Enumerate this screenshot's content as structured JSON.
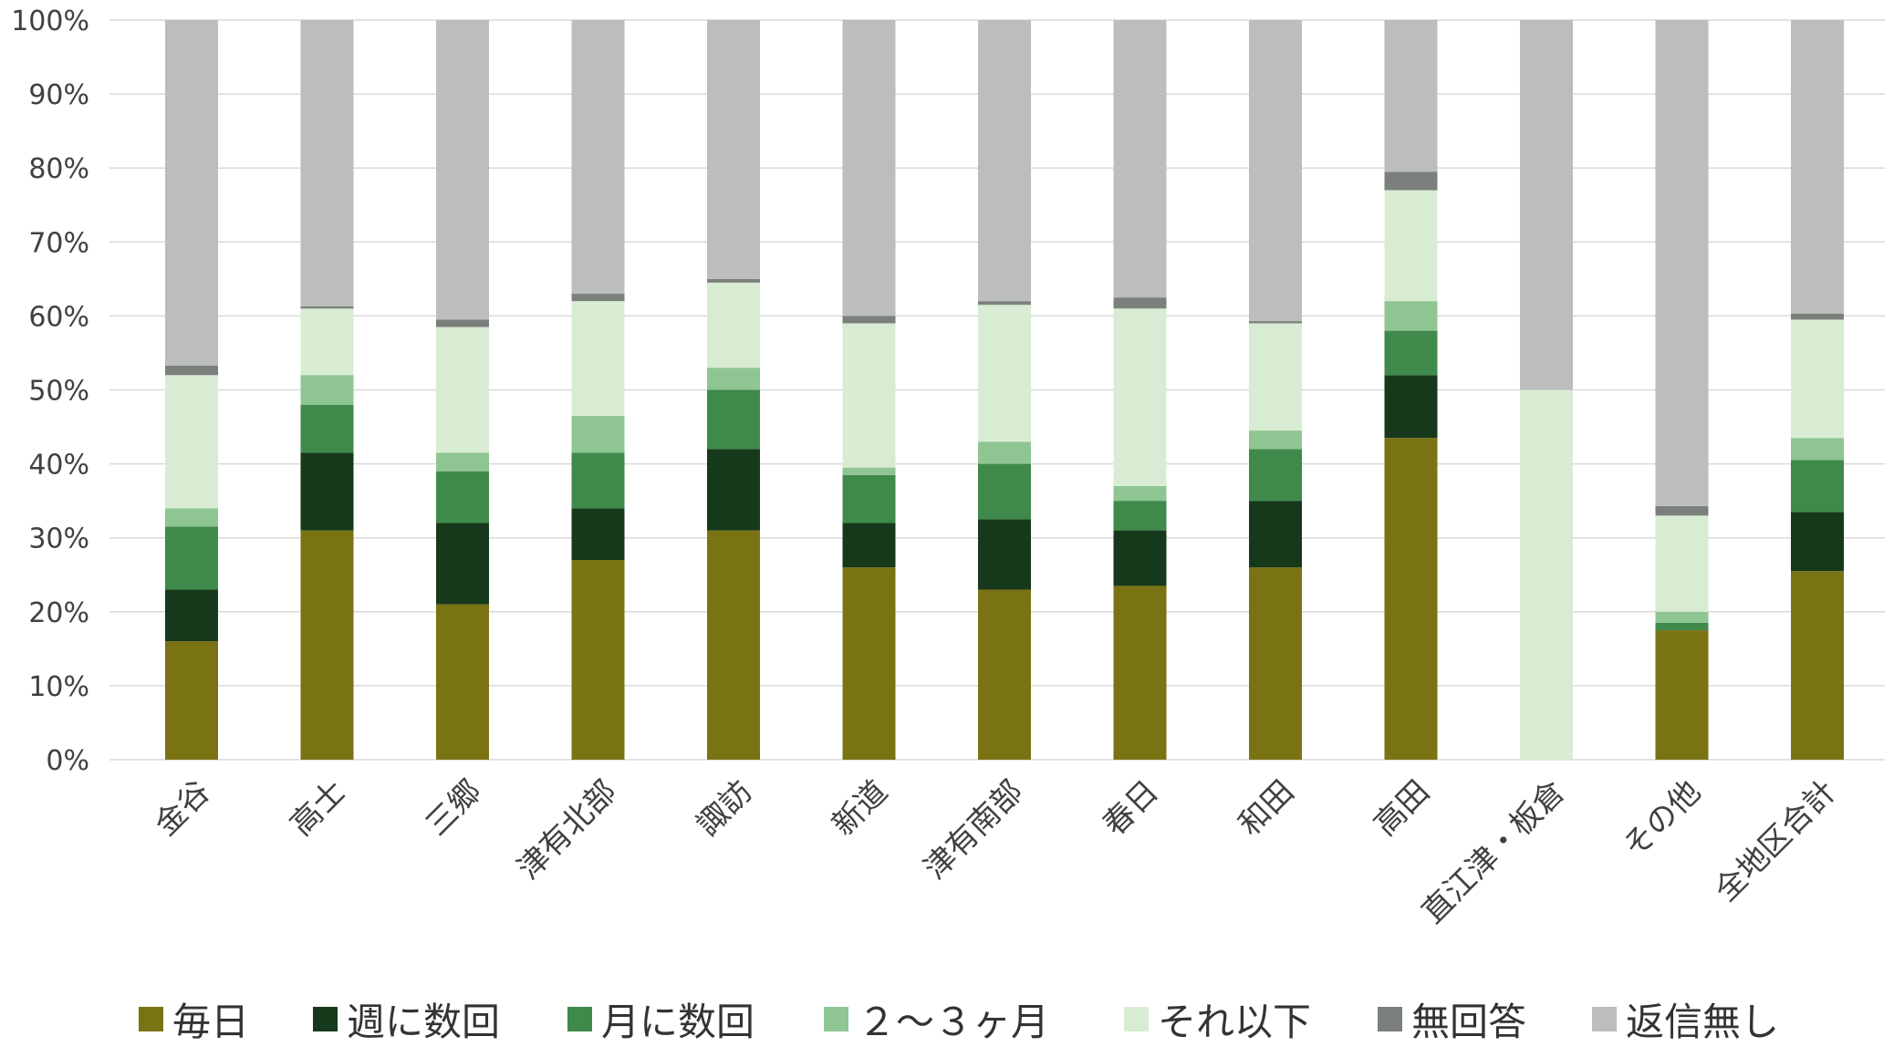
{
  "chart_data": {
    "type": "bar",
    "stacked": true,
    "title": "",
    "xlabel": "",
    "ylabel": "",
    "ylim": [
      0,
      100
    ],
    "y_ticks": [
      "0%",
      "10%",
      "20%",
      "30%",
      "40%",
      "50%",
      "60%",
      "70%",
      "80%",
      "90%",
      "100%"
    ],
    "grid": true,
    "legend_position": "bottom",
    "categories": [
      "金谷",
      "高士",
      "三郷",
      "津有北部",
      "諏訪",
      "新道",
      "津有南部",
      "春日",
      "和田",
      "高田",
      "直江津・板倉",
      "その他",
      "全地区合計"
    ],
    "series": [
      {
        "name": "毎日",
        "color": "#7a7314",
        "values": [
          16,
          31,
          21,
          27,
          31,
          26,
          23,
          23.5,
          26,
          43.5,
          0,
          17.5,
          25.5
        ]
      },
      {
        "name": "週に数回",
        "color": "#17391b",
        "values": [
          7,
          10.5,
          11,
          7,
          11,
          6,
          9.5,
          7.5,
          9,
          8.5,
          0,
          0,
          8
        ]
      },
      {
        "name": "月に数回",
        "color": "#3f8a4a",
        "values": [
          8.5,
          6.5,
          7,
          7.5,
          8,
          6.5,
          7.5,
          4,
          7,
          6,
          0,
          1,
          7
        ]
      },
      {
        "name": "２～３ヶ月",
        "color": "#8fc592",
        "values": [
          2.5,
          4,
          2.5,
          5,
          3,
          1,
          3,
          2,
          2.5,
          4,
          0,
          1.5,
          3
        ]
      },
      {
        "name": "それ以下",
        "color": "#d8ecd3",
        "values": [
          18,
          9,
          17,
          15.5,
          11.5,
          19.5,
          18.5,
          24,
          14.5,
          15,
          50,
          13,
          16
        ]
      },
      {
        "name": "無回答",
        "color": "#7c807c",
        "values": [
          1.3,
          0.3,
          1,
          1,
          0.5,
          1,
          0.5,
          1.5,
          0.3,
          2.5,
          0,
          1.3,
          0.8
        ]
      },
      {
        "name": "返信無し",
        "color": "#bcbebb",
        "values": [
          46.7,
          38.7,
          40.5,
          37,
          35,
          40,
          38,
          37.5,
          40.7,
          20.5,
          50,
          65.7,
          39.7
        ]
      }
    ]
  }
}
